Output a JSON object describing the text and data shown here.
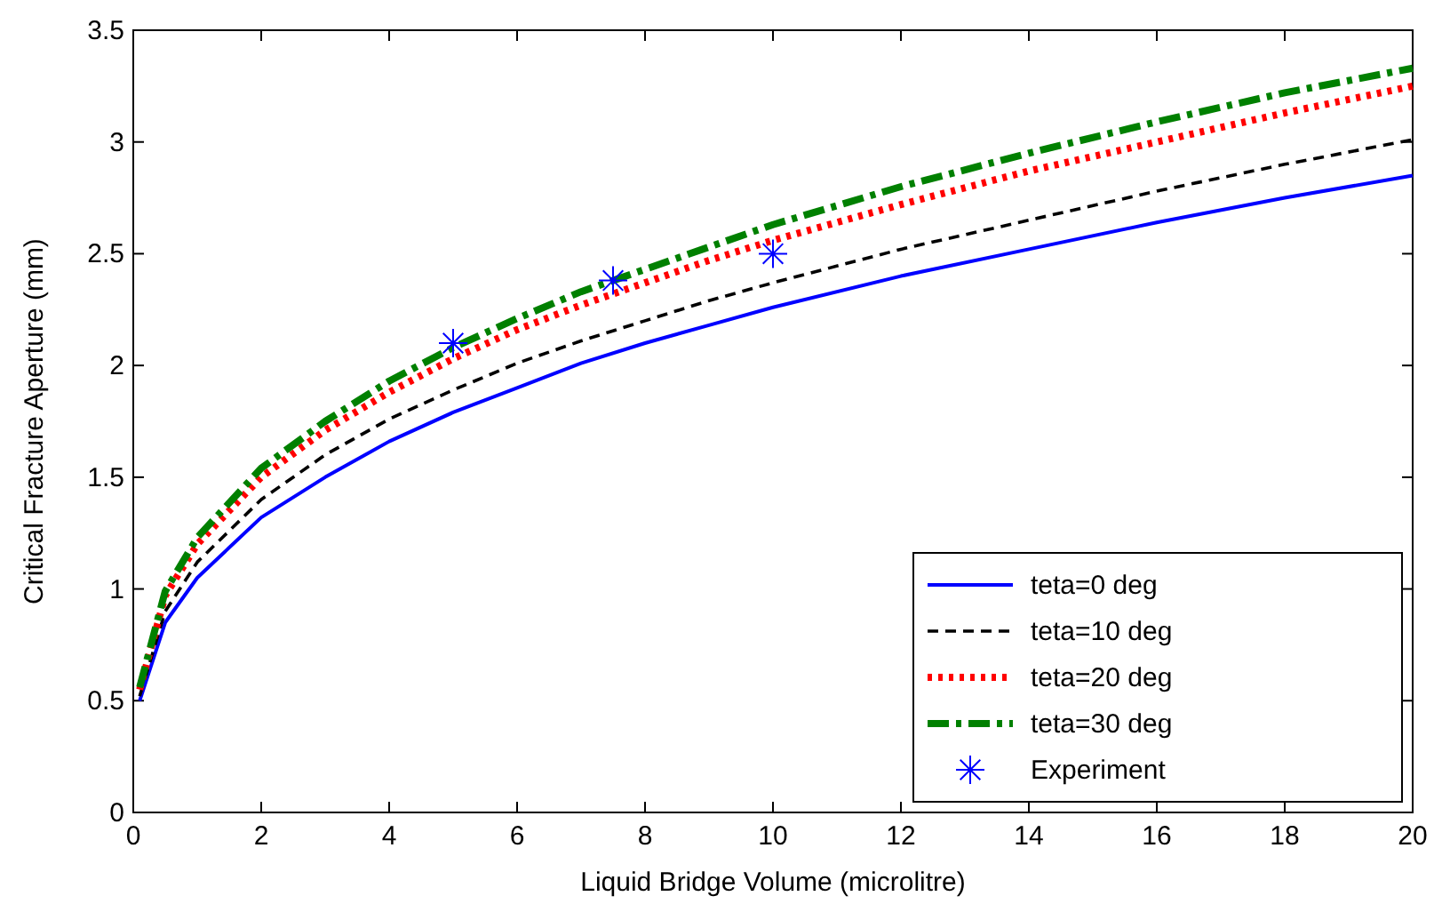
{
  "chart_data": {
    "type": "line",
    "xlabel": "Liquid Bridge Volume (microlitre)",
    "ylabel": "Critical Fracture Aperture (mm)",
    "xlim": [
      0,
      20
    ],
    "ylim": [
      0,
      3.5
    ],
    "xticks": [
      0,
      2,
      4,
      6,
      8,
      10,
      12,
      14,
      16,
      18,
      20
    ],
    "yticks": [
      0,
      0.5,
      1,
      1.5,
      2,
      2.5,
      3,
      3.5
    ],
    "grid": false,
    "legend": "bottom right",
    "x": [
      0.1,
      0.5,
      1,
      2,
      3,
      4,
      5,
      6,
      7,
      8,
      9,
      10,
      12,
      14,
      16,
      18,
      20
    ],
    "series": [
      {
        "name": "teta=0 deg",
        "color": "#0000ff",
        "line_style": "solid",
        "values": [
          0.5,
          0.85,
          1.05,
          1.32,
          1.5,
          1.66,
          1.79,
          1.9,
          2.01,
          2.1,
          2.18,
          2.26,
          2.4,
          2.52,
          2.64,
          2.75,
          2.85
        ]
      },
      {
        "name": "teta=10 deg",
        "color": "#000000",
        "line_style": "dashed",
        "values": [
          0.52,
          0.9,
          1.12,
          1.4,
          1.6,
          1.76,
          1.89,
          2.01,
          2.11,
          2.2,
          2.29,
          2.37,
          2.52,
          2.65,
          2.78,
          2.9,
          3.01
        ]
      },
      {
        "name": "teta=20 deg",
        "color": "#ff0000",
        "line_style": "dotted",
        "values": [
          0.55,
          0.97,
          1.2,
          1.5,
          1.71,
          1.88,
          2.03,
          2.16,
          2.27,
          2.37,
          2.47,
          2.56,
          2.72,
          2.87,
          3.0,
          3.13,
          3.25
        ]
      },
      {
        "name": "teta=30 deg",
        "color": "#008000",
        "line_style": "dashdot",
        "values": [
          0.56,
          0.99,
          1.23,
          1.54,
          1.75,
          1.93,
          2.08,
          2.21,
          2.33,
          2.43,
          2.53,
          2.63,
          2.8,
          2.95,
          3.09,
          3.22,
          3.33
        ]
      },
      {
        "name": "Experiment",
        "type": "scatter",
        "marker": "cross",
        "color": "#0000ff",
        "x": [
          5,
          7.5,
          10
        ],
        "values": [
          2.1,
          2.38,
          2.5
        ]
      }
    ]
  }
}
